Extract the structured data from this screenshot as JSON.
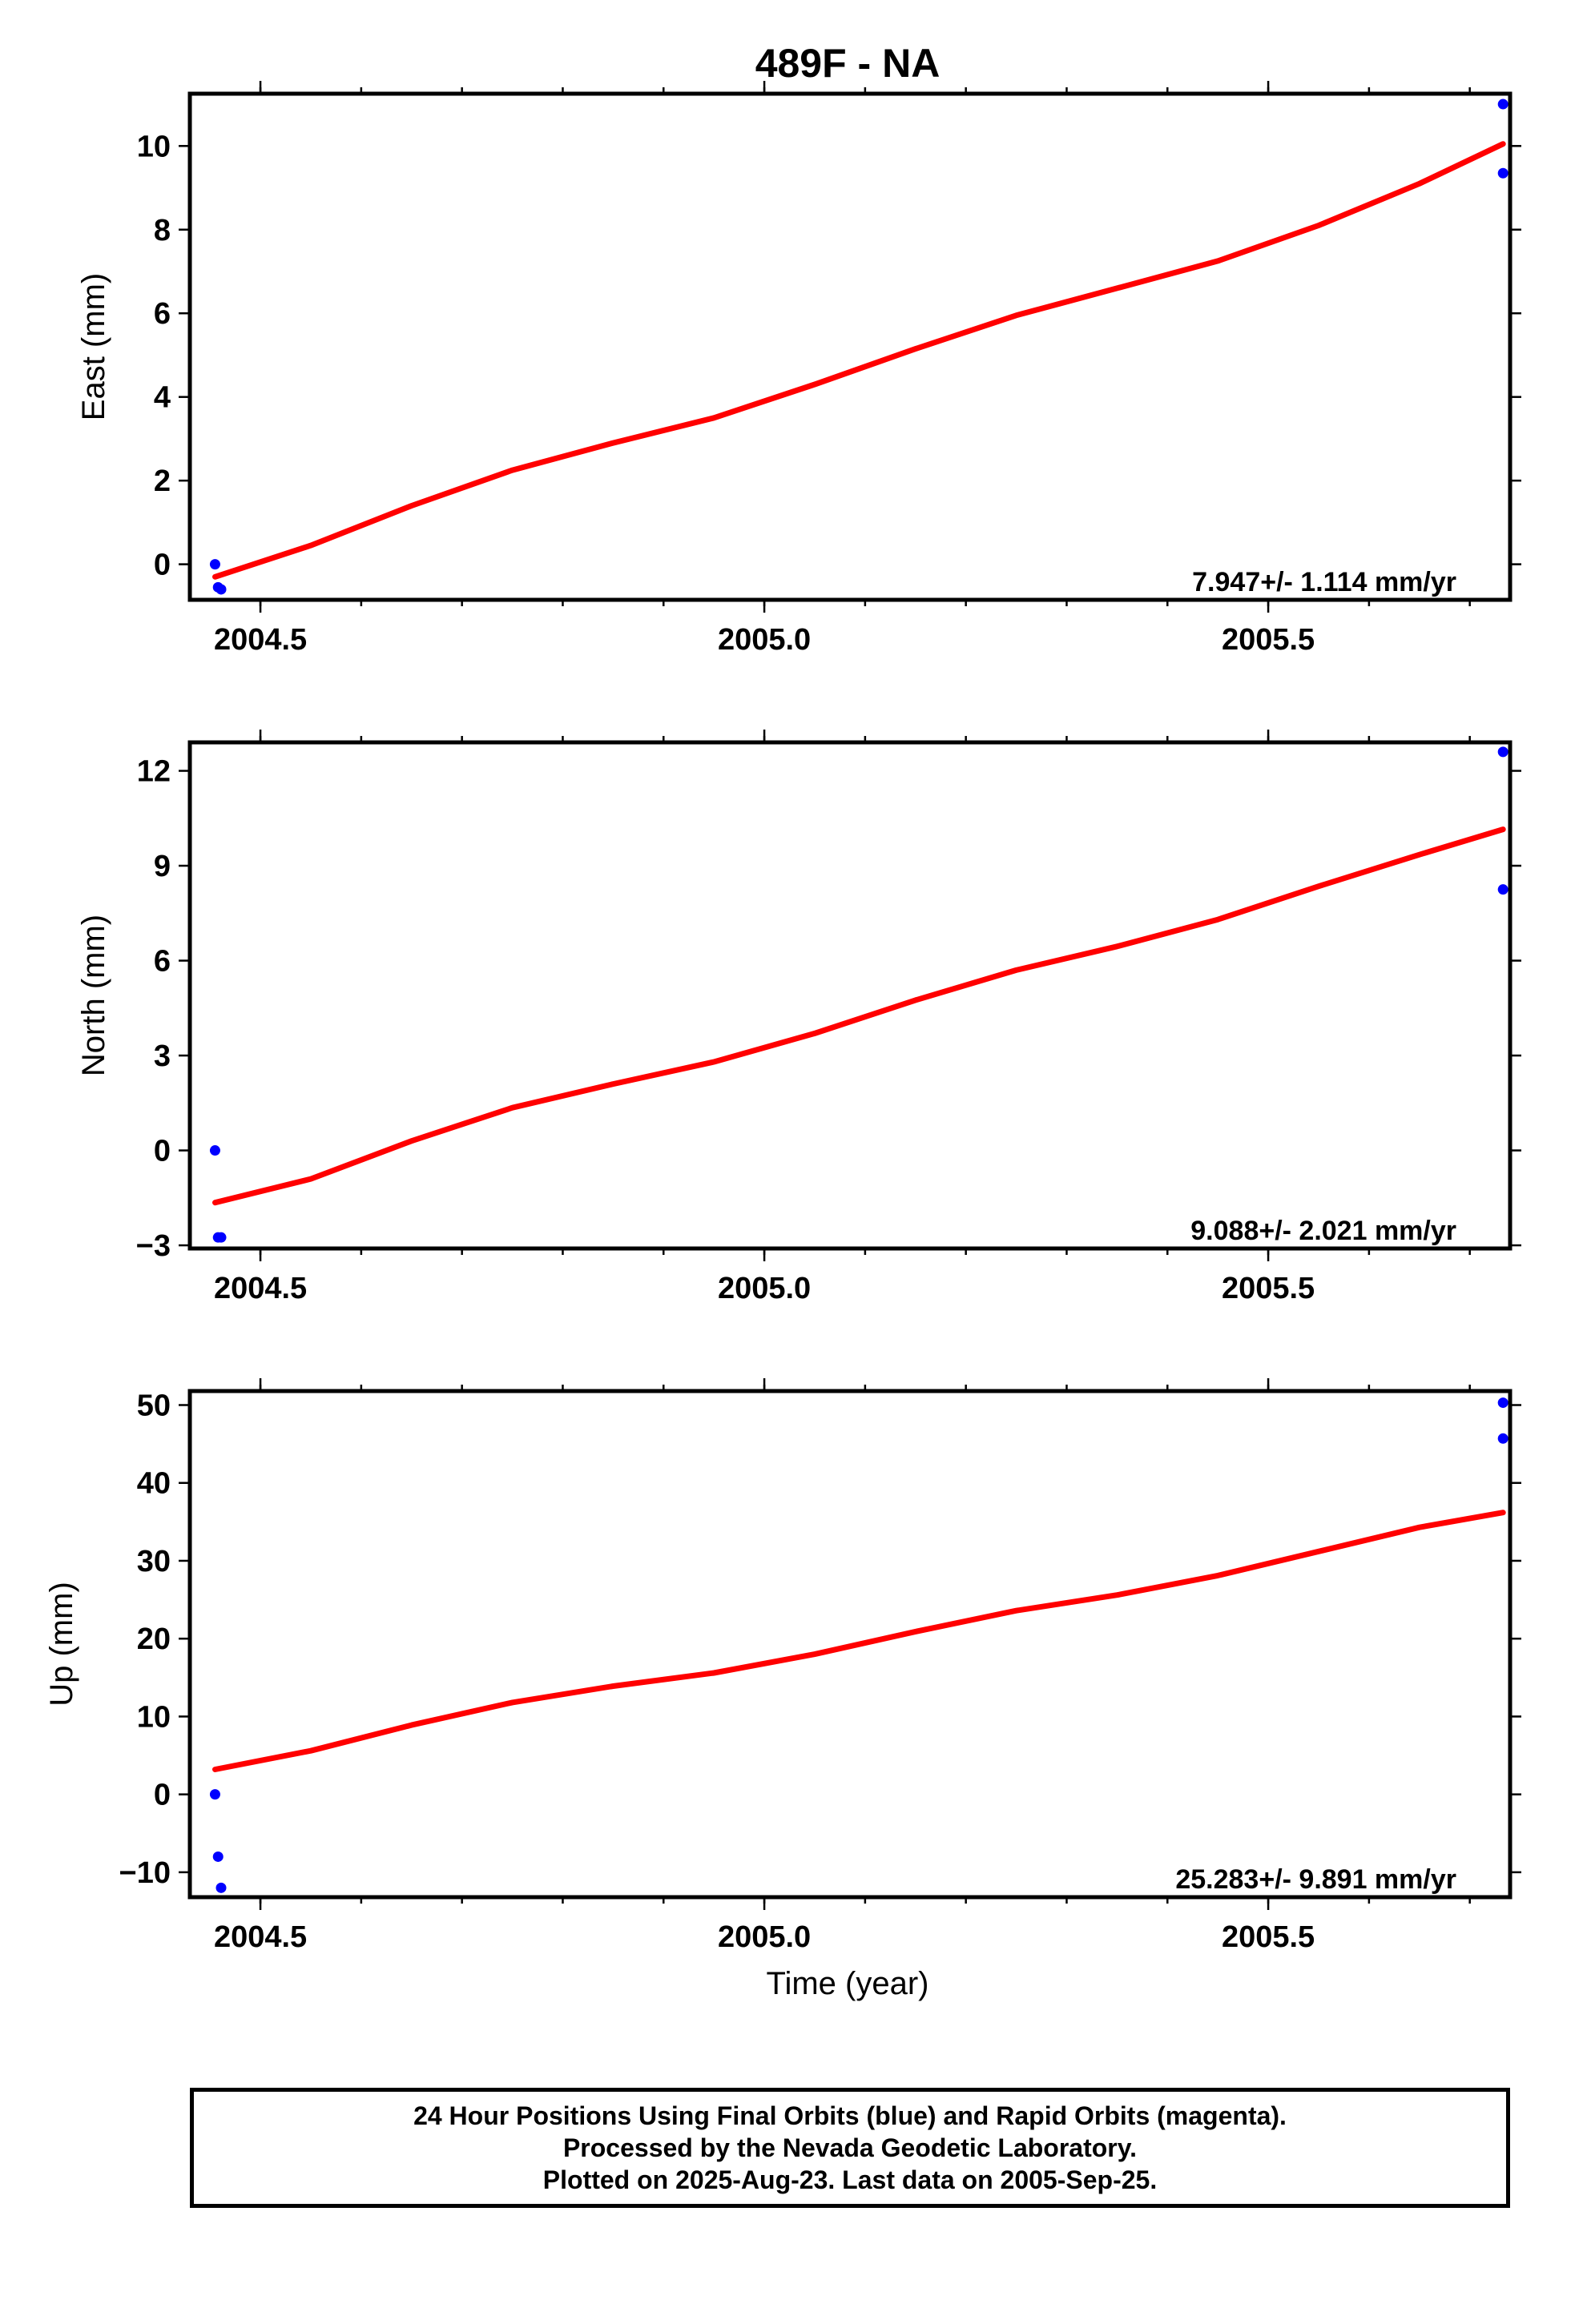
{
  "chart_data": {
    "title": "489F - NA",
    "xlabel": "Time (year)",
    "xlim": [
      2004.43,
      2005.74
    ],
    "xticks": [
      2004.5,
      2005.0,
      2005.5
    ],
    "xtick_labels": [
      "2004.5",
      "2005.0",
      "2005.5"
    ],
    "panels": [
      {
        "type": "scatter",
        "ylabel": "East (mm)",
        "ylim": [
          -0.85,
          11.25
        ],
        "yticks": [
          0,
          2,
          4,
          6,
          8,
          10
        ],
        "ytick_labels": [
          "0",
          "2",
          "4",
          "6",
          "8",
          "10"
        ],
        "rate_text": "7.947+/- 1.114 mm/yr",
        "series": [
          {
            "style": "points",
            "color": "#0000ff",
            "x": [
              2004.455,
              2004.458,
              2004.461,
              2005.733,
              2005.733
            ],
            "y": [
              0.0,
              -0.55,
              -0.6,
              11.0,
              9.35
            ]
          },
          {
            "style": "line",
            "color": "#ff0000",
            "x": [
              2004.455,
              2004.55,
              2004.65,
              2004.75,
              2004.85,
              2004.95,
              2005.05,
              2005.15,
              2005.25,
              2005.35,
              2005.45,
              2005.55,
              2005.65,
              2005.733
            ],
            "y": [
              -0.3,
              0.45,
              1.4,
              2.25,
              2.9,
              3.5,
              4.3,
              5.15,
              5.95,
              6.6,
              7.25,
              8.1,
              9.1,
              10.05
            ]
          }
        ]
      },
      {
        "type": "scatter",
        "ylabel": "North (mm)",
        "ylim": [
          -3.1,
          12.9
        ],
        "yticks": [
          -3,
          0,
          3,
          6,
          9,
          12
        ],
        "ytick_labels": [
          "−3",
          "0",
          "3",
          "6",
          "9",
          "12"
        ],
        "rate_text": "9.088+/- 2.021 mm/yr",
        "series": [
          {
            "style": "points",
            "color": "#0000ff",
            "x": [
              2004.455,
              2004.458,
              2004.461,
              2005.733,
              2005.733
            ],
            "y": [
              0.0,
              -2.75,
              -2.75,
              12.6,
              8.25
            ]
          },
          {
            "style": "line",
            "color": "#ff0000",
            "x": [
              2004.455,
              2004.55,
              2004.65,
              2004.75,
              2004.85,
              2004.95,
              2005.05,
              2005.15,
              2005.25,
              2005.35,
              2005.45,
              2005.55,
              2005.65,
              2005.733
            ],
            "y": [
              -1.65,
              -0.9,
              0.3,
              1.35,
              2.1,
              2.8,
              3.7,
              4.75,
              5.7,
              6.45,
              7.3,
              8.35,
              9.35,
              10.15
            ]
          }
        ]
      },
      {
        "type": "scatter",
        "ylabel": "Up (mm)",
        "ylim": [
          -13.2,
          51.8
        ],
        "yticks": [
          -10,
          0,
          10,
          20,
          30,
          40,
          50
        ],
        "ytick_labels": [
          "−10",
          "0",
          "10",
          "20",
          "30",
          "40",
          "50"
        ],
        "rate_text": "25.283+/- 9.891 mm/yr",
        "series": [
          {
            "style": "points",
            "color": "#0000ff",
            "x": [
              2004.455,
              2004.458,
              2004.461,
              2005.733,
              2005.733
            ],
            "y": [
              0.0,
              -8.0,
              -12.0,
              50.3,
              45.7
            ]
          },
          {
            "style": "line",
            "color": "#ff0000",
            "x": [
              2004.455,
              2004.55,
              2004.65,
              2004.75,
              2004.85,
              2004.95,
              2005.05,
              2005.15,
              2005.25,
              2005.35,
              2005.45,
              2005.55,
              2005.65,
              2005.733
            ],
            "y": [
              3.2,
              5.6,
              8.9,
              11.8,
              13.9,
              15.6,
              18.0,
              20.9,
              23.6,
              25.6,
              28.1,
              31.2,
              34.3,
              36.2
            ]
          }
        ]
      }
    ]
  },
  "caption": {
    "line1": "24 Hour Positions Using Final Orbits (blue) and Rapid Orbits (magenta).",
    "line2": "Processed by the Nevada Geodetic Laboratory.",
    "line3": "Plotted on 2025-Aug-23. Last data on 2005-Sep-25."
  }
}
